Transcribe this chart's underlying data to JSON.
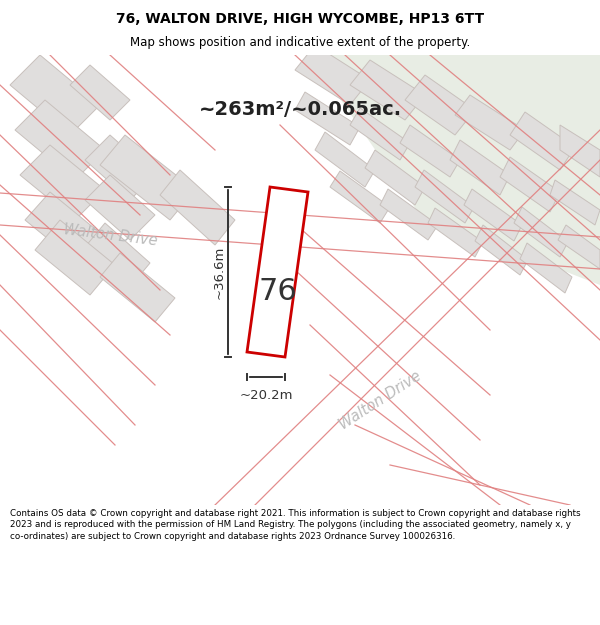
{
  "title": "76, WALTON DRIVE, HIGH WYCOMBE, HP13 6TT",
  "subtitle": "Map shows position and indicative extent of the property.",
  "area_text": "~263m²/~0.065ac.",
  "label_76": "76",
  "dim_width": "~20.2m",
  "dim_height": "~36.6m",
  "road_label1": "Walton Drive",
  "road_label2": "Walton Drive",
  "footer": "Contains OS data © Crown copyright and database right 2021. This information is subject to Crown copyright and database rights 2023 and is reproduced with the permission of HM Land Registry. The polygons (including the associated geometry, namely x, y co-ordinates) are subject to Crown copyright and database rights 2023 Ordnance Survey 100026316.",
  "bg_color": "#f5f3f0",
  "plot_fill": "#ffffff",
  "plot_edge": "#cc0000",
  "building_fill": "#e0dedd",
  "building_edge": "#c8c0bc",
  "green_color": "#e8ede4",
  "line_color": "#e08080",
  "dim_color": "#333333",
  "road_text_color": "#bbbbbb",
  "area_fontsize": 14,
  "label_fontsize": 22,
  "title_fontsize": 10,
  "subtitle_fontsize": 8.5,
  "footer_fontsize": 6.3
}
